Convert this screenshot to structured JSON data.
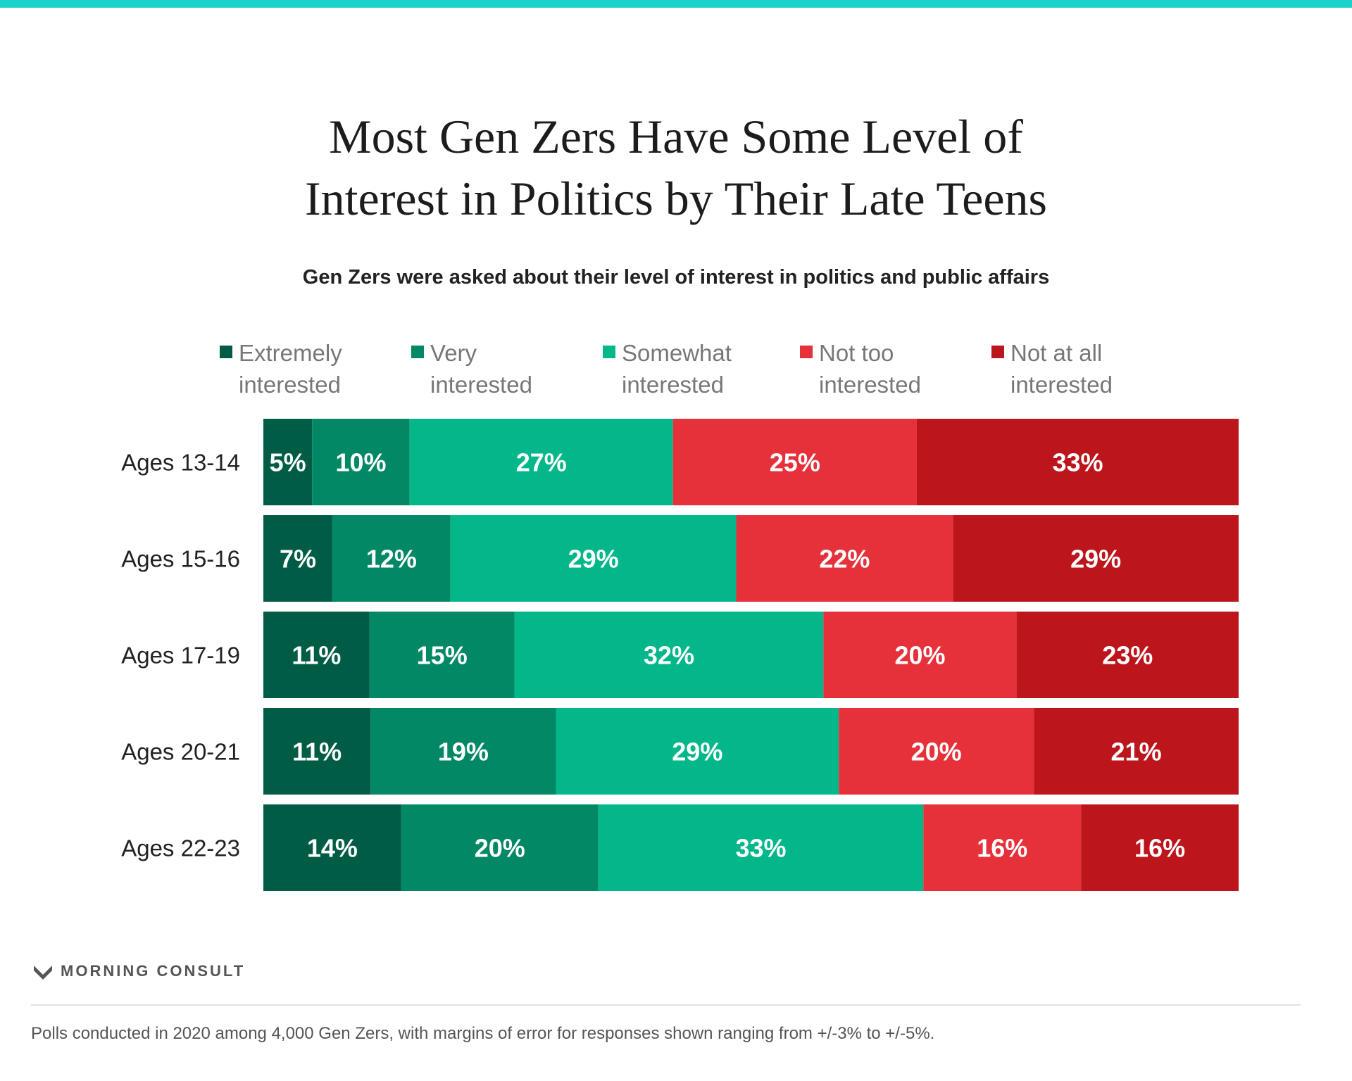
{
  "header": {
    "title_line1": "Most Gen Zers Have Some Level of",
    "title_line2": "Interest in Politics by Their Late Teens",
    "subtitle": "Gen Zers were asked about their level of interest in politics and public affairs"
  },
  "legend": [
    {
      "line1": "Extremely",
      "line2": "interested",
      "color": "#015c46"
    },
    {
      "line1": "Very",
      "line2": "interested",
      "color": "#038866"
    },
    {
      "line1": "Somewhat",
      "line2": "interested",
      "color": "#03b78a"
    },
    {
      "line1": "Not too",
      "line2": "interested",
      "color": "#e6313b"
    },
    {
      "line1": "Not at all",
      "line2": "interested",
      "color": "#bc151c"
    }
  ],
  "chart_data": {
    "type": "bar",
    "orientation": "horizontal",
    "stacked": true,
    "categories": [
      "Ages 13-14",
      "Ages 15-16",
      "Ages 17-19",
      "Ages 20-21",
      "Ages 22-23"
    ],
    "series": [
      {
        "name": "Extremely interested",
        "color": "#015c46",
        "values": [
          5,
          7,
          11,
          11,
          14
        ]
      },
      {
        "name": "Very interested",
        "color": "#038866",
        "values": [
          10,
          12,
          15,
          19,
          20
        ]
      },
      {
        "name": "Somewhat interested",
        "color": "#03b78a",
        "values": [
          27,
          29,
          32,
          29,
          33
        ]
      },
      {
        "name": "Not too interested",
        "color": "#e6313b",
        "values": [
          25,
          22,
          20,
          20,
          16
        ]
      },
      {
        "name": "Not at all interested",
        "color": "#bc151c",
        "values": [
          33,
          29,
          23,
          21,
          16
        ]
      }
    ],
    "unit": "%",
    "legend_position": "top"
  },
  "brand": {
    "name": "MORNING CONSULT"
  },
  "footnote": "Polls conducted in 2020 among 4,000 Gen Zers, with margins of error for responses shown ranging from +/-3% to +/-5%."
}
